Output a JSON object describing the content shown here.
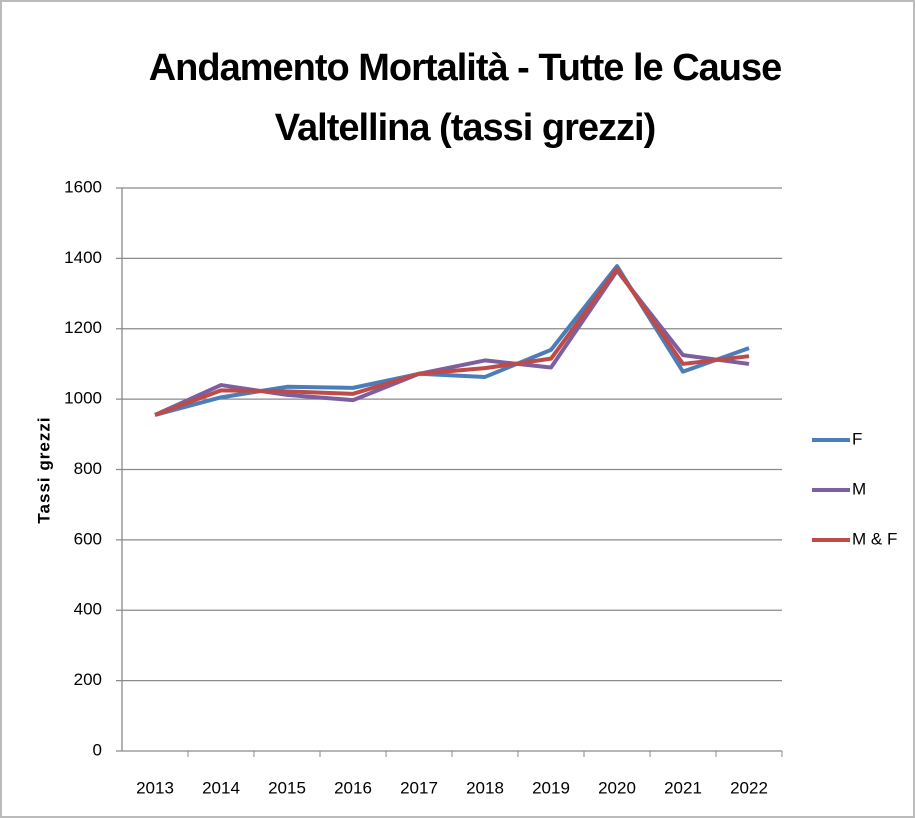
{
  "chart_data": {
    "type": "line",
    "title": [
      "Andamento Mortalità - Tutte le Cause",
      "Valtellina (tassi grezzi)"
    ],
    "ylabel": "Tassi grezzi",
    "categories": [
      "2013",
      "2014",
      "2015",
      "2016",
      "2017",
      "2018",
      "2019",
      "2020",
      "2021",
      "2022"
    ],
    "series": [
      {
        "name": "F",
        "color": "#4a7ebb",
        "values": [
          955,
          1005,
          1035,
          1032,
          1072,
          1063,
          1140,
          1378,
          1078,
          1145
        ]
      },
      {
        "name": "M",
        "color": "#7d5fa0",
        "values": [
          955,
          1040,
          1012,
          997,
          1072,
          1110,
          1090,
          1365,
          1125,
          1100
        ]
      },
      {
        "name": "M & F",
        "color": "#be4b48",
        "values": [
          955,
          1025,
          1022,
          1015,
          1072,
          1088,
          1115,
          1370,
          1100,
          1122
        ]
      }
    ],
    "ylim": [
      0,
      1600
    ],
    "yticks": [
      0,
      200,
      400,
      600,
      800,
      1000,
      1200,
      1400,
      1600
    ],
    "grid": true,
    "legend": "right"
  }
}
